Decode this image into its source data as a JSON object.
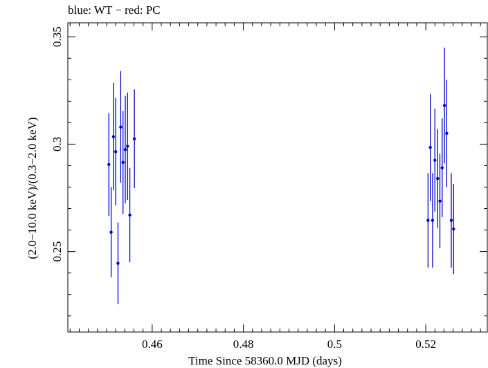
{
  "chart_data": {
    "type": "scatter",
    "title": "blue: WT − red: PC",
    "xlabel": "Time Since 58360.0 MJD (days)",
    "ylabel": "(2.0−10.0 keV)/(0.3−2.0 keV)",
    "xlim": [
      0.4415,
      0.5335
    ],
    "ylim": [
      0.2125,
      0.3565
    ],
    "x_ticks": [
      {
        "value": 0.46,
        "label": "0.46"
      },
      {
        "value": 0.48,
        "label": "0.48"
      },
      {
        "value": 0.5,
        "label": "0.5"
      },
      {
        "value": 0.52,
        "label": "0.52"
      }
    ],
    "y_ticks": [
      {
        "value": 0.25,
        "label": "0.25"
      },
      {
        "value": 0.3,
        "label": "0.3"
      },
      {
        "value": 0.35,
        "label": "0.35"
      }
    ],
    "grid": false,
    "series": [
      {
        "color": "#0000cc",
        "points": [
          {
            "x": 0.4505,
            "y": 0.2905,
            "err": 0.024
          },
          {
            "x": 0.451,
            "y": 0.259,
            "err": 0.021
          },
          {
            "x": 0.4515,
            "y": 0.3035,
            "err": 0.025
          },
          {
            "x": 0.452,
            "y": 0.2965,
            "err": 0.025
          },
          {
            "x": 0.4525,
            "y": 0.2445,
            "err": 0.019
          },
          {
            "x": 0.4531,
            "y": 0.308,
            "err": 0.026
          },
          {
            "x": 0.4536,
            "y": 0.2915,
            "err": 0.024
          },
          {
            "x": 0.4541,
            "y": 0.2975,
            "err": 0.025
          },
          {
            "x": 0.4546,
            "y": 0.299,
            "err": 0.025
          },
          {
            "x": 0.4551,
            "y": 0.267,
            "err": 0.022
          },
          {
            "x": 0.4561,
            "y": 0.3025,
            "err": 0.023
          },
          {
            "x": 0.5205,
            "y": 0.2645,
            "err": 0.022
          },
          {
            "x": 0.521,
            "y": 0.2985,
            "err": 0.025
          },
          {
            "x": 0.5215,
            "y": 0.2645,
            "err": 0.022
          },
          {
            "x": 0.522,
            "y": 0.2925,
            "err": 0.024
          },
          {
            "x": 0.5226,
            "y": 0.284,
            "err": 0.023
          },
          {
            "x": 0.5231,
            "y": 0.2735,
            "err": 0.022
          },
          {
            "x": 0.5236,
            "y": 0.289,
            "err": 0.023
          },
          {
            "x": 0.5241,
            "y": 0.318,
            "err": 0.027
          },
          {
            "x": 0.5246,
            "y": 0.305,
            "err": 0.025
          },
          {
            "x": 0.5256,
            "y": 0.2645,
            "err": 0.022
          },
          {
            "x": 0.5261,
            "y": 0.2605,
            "err": 0.021
          }
        ]
      }
    ]
  }
}
